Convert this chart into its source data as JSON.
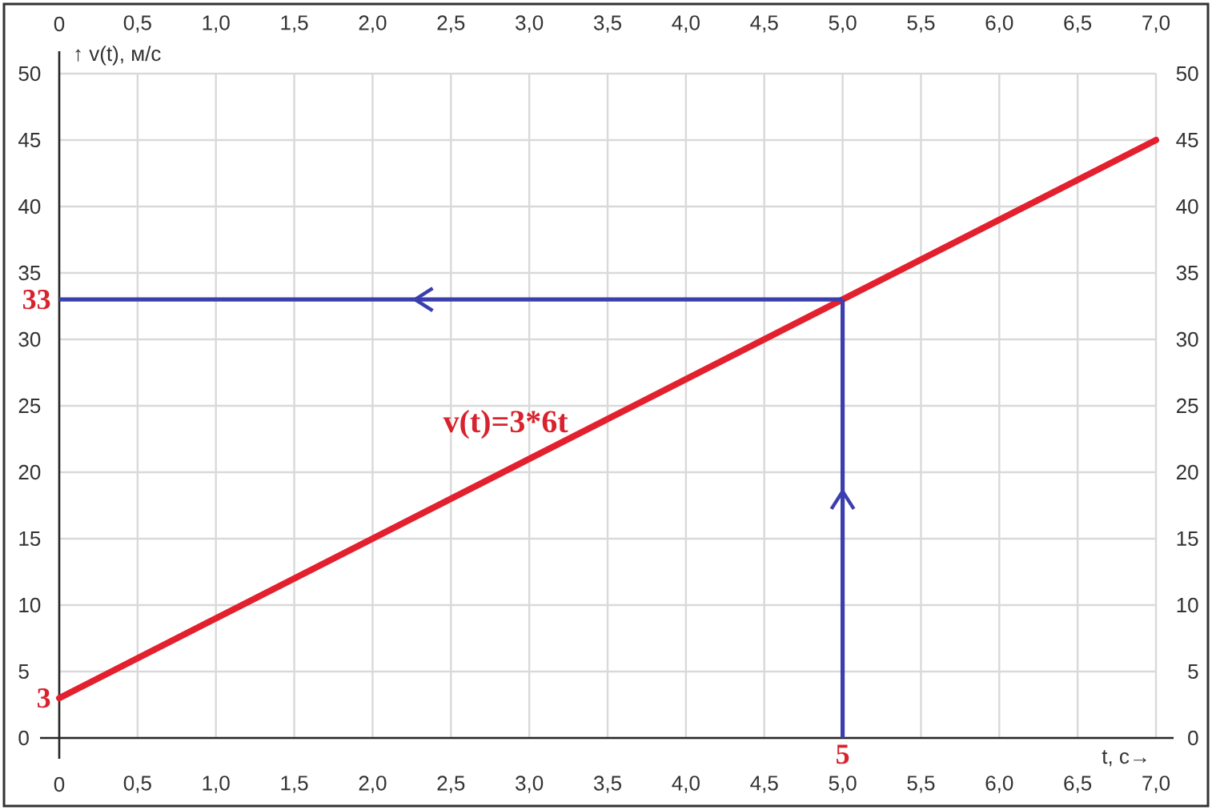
{
  "chart_data": {
    "type": "line",
    "xlabel": "t, с→",
    "ylabel": "↑ v(t), м/с",
    "xlim": [
      0,
      7
    ],
    "ylim": [
      0,
      50
    ],
    "xticks": [
      0,
      {
        "value": 0.5,
        "label": "0,5"
      },
      {
        "value": 1,
        "label": "1,0"
      },
      {
        "value": 1.5,
        "label": "1,5"
      },
      {
        "value": 2,
        "label": "2,0"
      },
      {
        "value": 2.5,
        "label": "2,5"
      },
      {
        "value": 3,
        "label": "3,0"
      },
      {
        "value": 3.5,
        "label": "3,5"
      },
      {
        "value": 4,
        "label": "4,0"
      },
      {
        "value": 4.5,
        "label": "4,5"
      },
      {
        "value": 5,
        "label": "5,0"
      },
      {
        "value": 5.5,
        "label": "5,5"
      },
      {
        "value": 6,
        "label": "6,0"
      },
      {
        "value": 6.5,
        "label": "6,5"
      },
      {
        "value": 7,
        "label": "7,0"
      }
    ],
    "yticks": [
      0,
      5,
      10,
      15,
      20,
      25,
      30,
      35,
      40,
      45,
      50
    ],
    "x2lim": [
      0,
      7
    ],
    "x2ticks": [
      0,
      {
        "value": 0.5,
        "label": "0,5"
      },
      {
        "value": 1,
        "label": "1,0"
      },
      {
        "value": 1.5,
        "label": "1,5"
      },
      {
        "value": 2,
        "label": "2,0"
      },
      {
        "value": 2.5,
        "label": "2,5"
      },
      {
        "value": 3,
        "label": "3,0"
      },
      {
        "value": 3.5,
        "label": "3,5"
      },
      {
        "value": 4,
        "label": "4,0"
      },
      {
        "value": 4.5,
        "label": "4,5"
      },
      {
        "value": 5,
        "label": "5,0"
      },
      {
        "value": 5.5,
        "label": "5,5"
      },
      {
        "value": 6,
        "label": "6,0"
      },
      {
        "value": 6.5,
        "label": "6,5"
      },
      {
        "value": 7,
        "label": "7,0"
      }
    ],
    "y2lim": [
      0,
      50
    ],
    "y2ticks": [
      0,
      5,
      10,
      15,
      20,
      25,
      30,
      35,
      40,
      45,
      50
    ],
    "series": [
      {
        "color": "#e3202e",
        "x": [
          0,
          7
        ],
        "values": [
          3,
          45
        ]
      },
      {
        "color": "#3b3fae",
        "x": [
          5,
          0
        ],
        "values": [
          33,
          33
        ]
      },
      {
        "color": "#3b3fae",
        "x": [
          5,
          5
        ],
        "values": [
          0,
          33
        ]
      }
    ],
    "annotations": [
      "33",
      "3",
      "5",
      "v(t)=3*6t"
    ],
    "grid": true,
    "marker": "none"
  }
}
